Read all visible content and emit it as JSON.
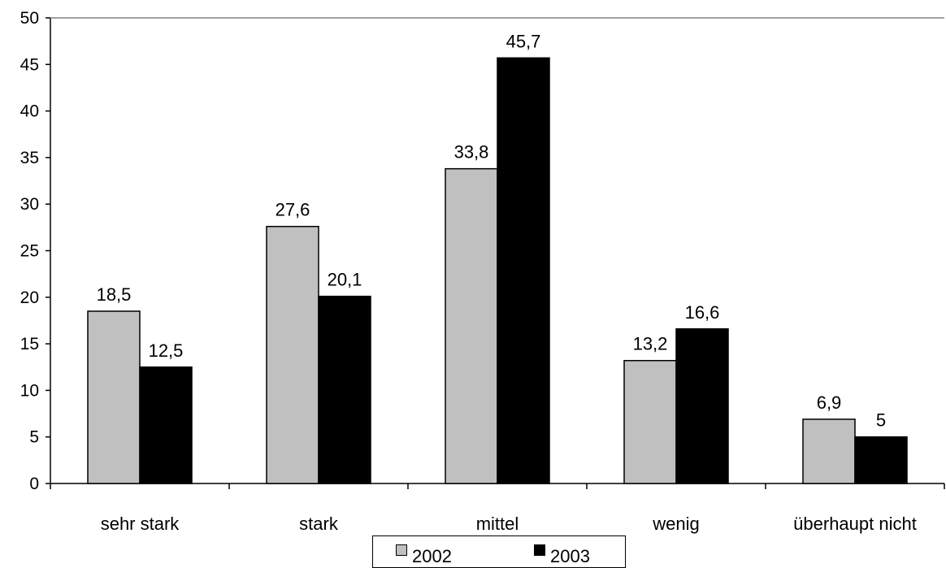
{
  "chart_data": {
    "type": "bar",
    "categories": [
      "sehr stark",
      "stark",
      "mittel",
      "wenig",
      "überhaupt nicht"
    ],
    "series": [
      {
        "name": "2002",
        "values": [
          18.5,
          27.6,
          33.8,
          13.2,
          6.9
        ],
        "labels": [
          "18,5",
          "27,6",
          "33,8",
          "13,2",
          "6,9"
        ],
        "color": "#c0c0c0"
      },
      {
        "name": "2003",
        "values": [
          12.5,
          20.1,
          45.7,
          16.6,
          5
        ],
        "labels": [
          "12,5",
          "20,1",
          "45,7",
          "16,6",
          "5"
        ],
        "color": "#000000"
      }
    ],
    "y_ticks": [
      "0",
      "5",
      "10",
      "15",
      "20",
      "25",
      "30",
      "35",
      "40",
      "45",
      "50"
    ],
    "ylim": [
      0,
      50
    ],
    "grid": false,
    "legend_position": "bottom-center"
  }
}
